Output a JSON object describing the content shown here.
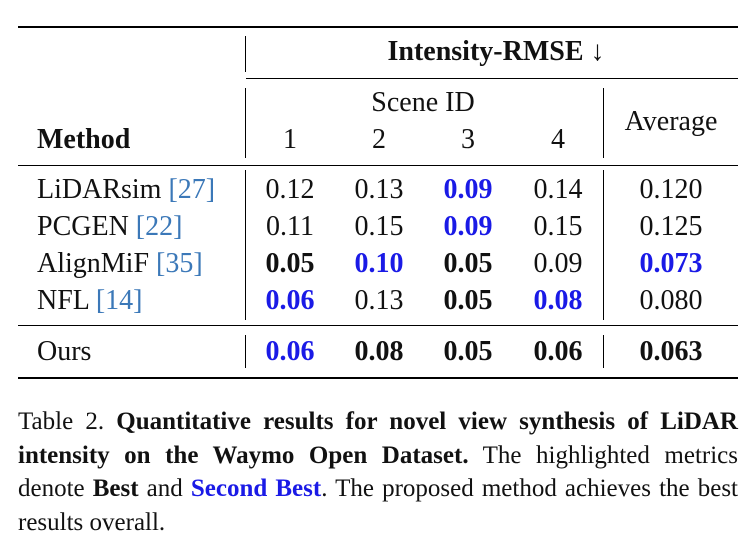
{
  "table": {
    "group_header": "Intensity-RMSE ↓",
    "scene_header": "Scene ID",
    "method_header": "Method",
    "average_header": "Average",
    "scene_ids": [
      "1",
      "2",
      "3",
      "4"
    ],
    "rows": [
      {
        "name": "LiDARsim ",
        "ref": "[27]",
        "cells": [
          {
            "v": "0.12",
            "s": "normal"
          },
          {
            "v": "0.13",
            "s": "normal"
          },
          {
            "v": "0.09",
            "s": "second"
          },
          {
            "v": "0.14",
            "s": "normal"
          },
          {
            "v": "0.120",
            "s": "normal"
          }
        ]
      },
      {
        "name": "PCGEN ",
        "ref": "[22]",
        "cells": [
          {
            "v": "0.11",
            "s": "normal"
          },
          {
            "v": "0.15",
            "s": "normal"
          },
          {
            "v": "0.09",
            "s": "second"
          },
          {
            "v": "0.15",
            "s": "normal"
          },
          {
            "v": "0.125",
            "s": "normal"
          }
        ]
      },
      {
        "name": "AlignMiF ",
        "ref": "[35]",
        "cells": [
          {
            "v": "0.05",
            "s": "best"
          },
          {
            "v": "0.10",
            "s": "second"
          },
          {
            "v": "0.05",
            "s": "best"
          },
          {
            "v": "0.09",
            "s": "normal"
          },
          {
            "v": "0.073",
            "s": "second"
          }
        ]
      },
      {
        "name": "NFL ",
        "ref": "[14]",
        "cells": [
          {
            "v": "0.06",
            "s": "second"
          },
          {
            "v": "0.13",
            "s": "normal"
          },
          {
            "v": "0.05",
            "s": "best"
          },
          {
            "v": "0.08",
            "s": "second"
          },
          {
            "v": "0.080",
            "s": "normal"
          }
        ]
      }
    ],
    "ours": {
      "name": "Ours",
      "cells": [
        {
          "v": "0.06",
          "s": "second"
        },
        {
          "v": "0.08",
          "s": "best"
        },
        {
          "v": "0.05",
          "s": "best"
        },
        {
          "v": "0.06",
          "s": "best"
        },
        {
          "v": "0.063",
          "s": "best"
        }
      ]
    }
  },
  "caption": {
    "label": "Table 2. ",
    "bold_part": "Quantitative results for novel view synthesis of LiDAR intensity on the Waymo Open Dataset.",
    "text_1": " The highlighted metrics denote ",
    "best": "Best",
    "text_2": " and ",
    "second_best": "Second Best",
    "text_3": ". The proposed method achieves the best results overall."
  }
}
